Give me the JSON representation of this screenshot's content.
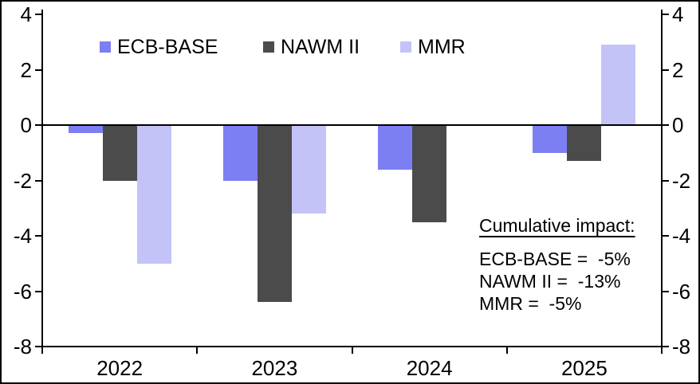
{
  "chart_data": {
    "type": "bar",
    "categories": [
      "2022",
      "2023",
      "2024",
      "2025"
    ],
    "series": [
      {
        "name": "ECB-BASE",
        "color": "#7c7ff2",
        "values": [
          -0.3,
          -2.0,
          -1.6,
          -1.0
        ]
      },
      {
        "name": "NAWM II",
        "color": "#4b4b4b",
        "values": [
          -2.0,
          -6.4,
          -3.5,
          -1.3
        ]
      },
      {
        "name": "MMR",
        "color": "#c3c3f8",
        "values": [
          -5.0,
          -3.2,
          0,
          2.9
        ]
      }
    ],
    "title": "",
    "xlabel": "",
    "ylabel": "",
    "ylim": [
      -8,
      4
    ],
    "yticks": [
      "4",
      "2",
      "0",
      "-2",
      "-4",
      "-6",
      "-8"
    ],
    "grid": false,
    "legend_position": "top",
    "axis_color": "#000000",
    "background_color": "#ffffff"
  },
  "annotation": {
    "title": "Cumulative impact:",
    "lines": [
      "ECB-BASE =  -5%",
      "NAWM II =  -13%",
      "MMR =  -5%"
    ]
  }
}
